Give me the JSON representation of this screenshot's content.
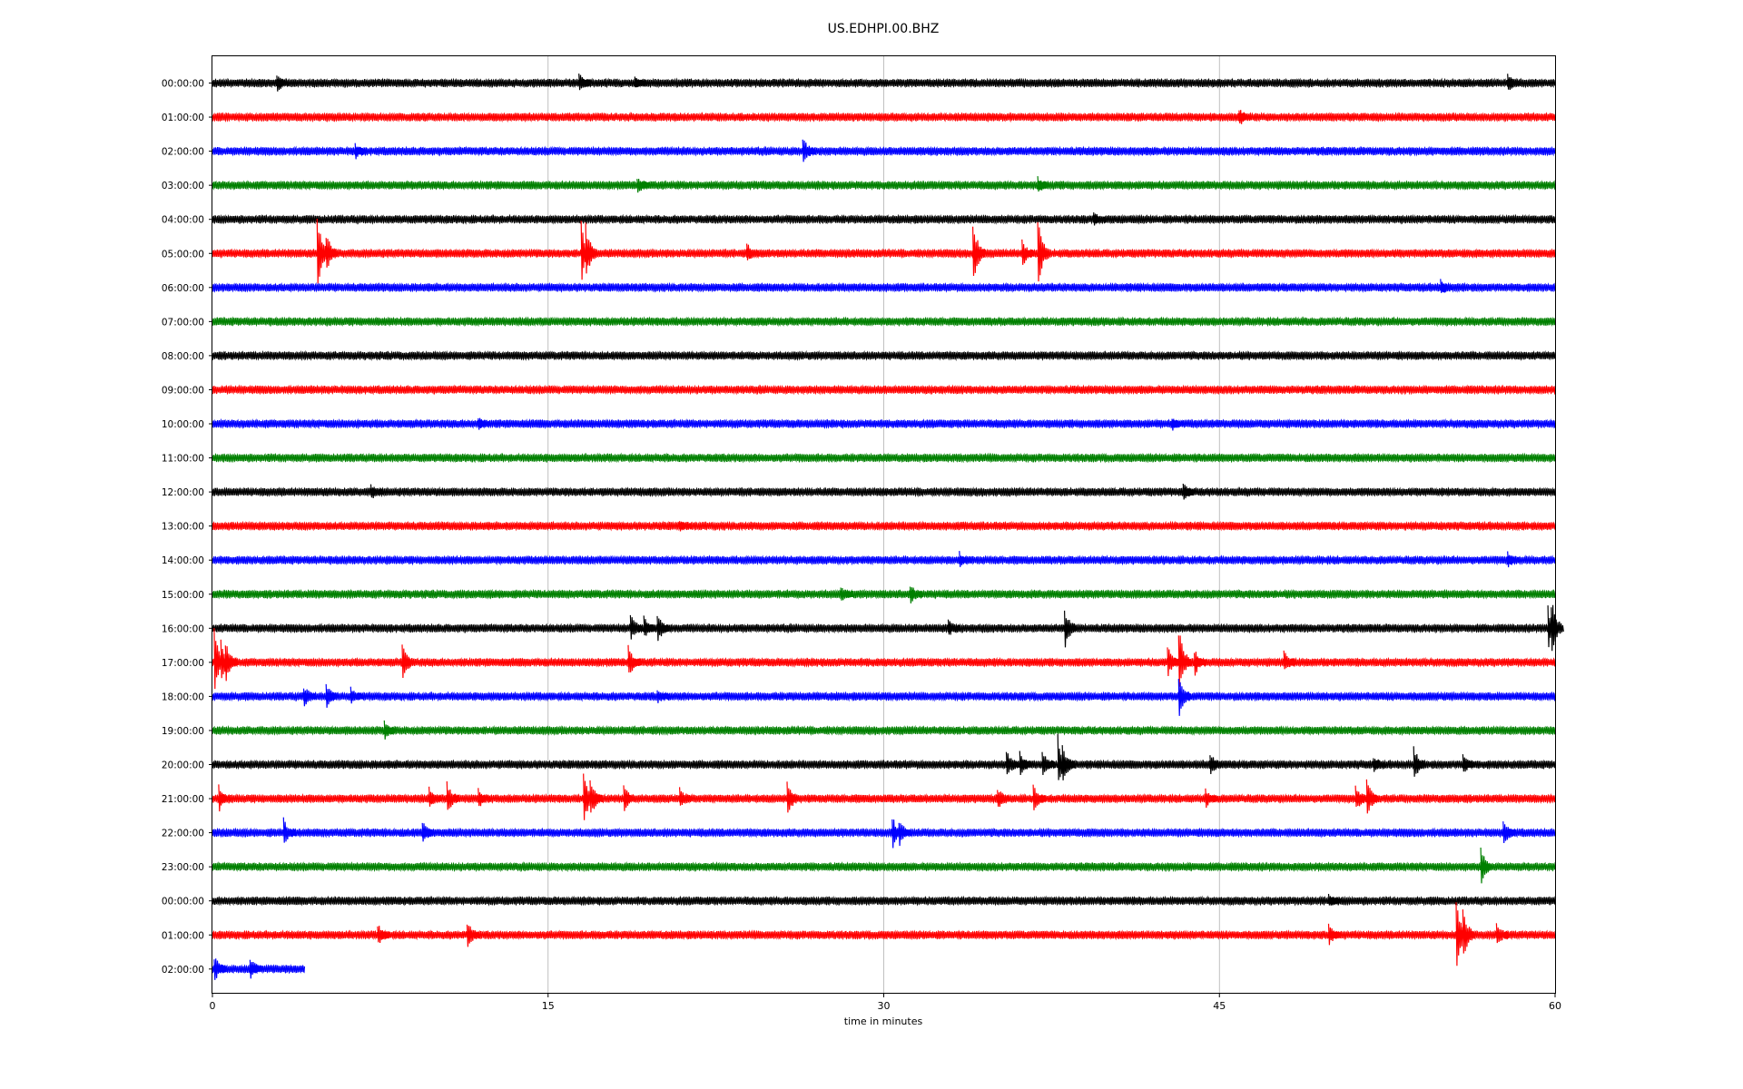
{
  "chart_data": {
    "type": "line",
    "title": "US.EDHPI.00.BHZ",
    "xlabel": "time in minutes",
    "ylabel": "",
    "xlim": [
      0,
      60
    ],
    "x_ticks": [
      0,
      15,
      30,
      45,
      60
    ],
    "grid": "vertical",
    "trace_colors": [
      "#000000",
      "#ff0000",
      "#0000ff",
      "#008000"
    ],
    "rows": [
      {
        "label": "00:00:00",
        "end_minute": 60,
        "events": [
          [
            3,
            0.3
          ],
          [
            16.5,
            0.3
          ],
          [
            19,
            0.2
          ],
          [
            58,
            0.35
          ]
        ]
      },
      {
        "label": "01:00:00",
        "end_minute": 60,
        "events": [
          [
            46,
            0.3
          ]
        ]
      },
      {
        "label": "02:00:00",
        "end_minute": 60,
        "events": [
          [
            6.5,
            0.25
          ],
          [
            26.5,
            0.5
          ]
        ]
      },
      {
        "label": "03:00:00",
        "end_minute": 60,
        "events": [
          [
            19.1,
            0.3
          ],
          [
            37,
            0.25
          ]
        ]
      },
      {
        "label": "04:00:00",
        "end_minute": 60,
        "events": [
          [
            39.5,
            0.2
          ]
        ]
      },
      {
        "label": "05:00:00",
        "end_minute": 60,
        "events": [
          [
            4.8,
            1.5
          ],
          [
            5.2,
            0.8
          ],
          [
            16.6,
            1.2
          ],
          [
            16.8,
            1.1
          ],
          [
            24,
            0.35
          ],
          [
            34.1,
            1.4
          ],
          [
            36.3,
            0.5
          ],
          [
            37,
            1.5
          ]
        ]
      },
      {
        "label": "06:00:00",
        "end_minute": 60,
        "events": [
          [
            55,
            0.25
          ]
        ]
      },
      {
        "label": "07:00:00",
        "end_minute": 60,
        "events": []
      },
      {
        "label": "08:00:00",
        "end_minute": 60,
        "events": []
      },
      {
        "label": "09:00:00",
        "end_minute": 60,
        "events": []
      },
      {
        "label": "10:00:00",
        "end_minute": 60,
        "events": [
          [
            12,
            0.2
          ],
          [
            43,
            0.2
          ]
        ]
      },
      {
        "label": "11:00:00",
        "end_minute": 60,
        "events": []
      },
      {
        "label": "12:00:00",
        "end_minute": 60,
        "events": [
          [
            7.2,
            0.25
          ],
          [
            43.5,
            0.25
          ]
        ]
      },
      {
        "label": "13:00:00",
        "end_minute": 60,
        "events": [
          [
            21,
            0.2
          ]
        ]
      },
      {
        "label": "14:00:00",
        "end_minute": 60,
        "events": [
          [
            33.5,
            0.25
          ],
          [
            58,
            0.25
          ]
        ]
      },
      {
        "label": "15:00:00",
        "end_minute": 60,
        "events": [
          [
            28.2,
            0.3
          ],
          [
            31.3,
            0.35
          ]
        ]
      },
      {
        "label": "16:00:00",
        "end_minute": 60,
        "events": [
          [
            18.8,
            0.5
          ],
          [
            19.4,
            0.4
          ],
          [
            20,
            0.55
          ],
          [
            33,
            0.3
          ],
          [
            38.2,
            0.8
          ],
          [
            59.8,
            0.8
          ],
          [
            59.95,
            1.2
          ]
        ]
      },
      {
        "label": "17:00:00",
        "end_minute": 60,
        "events": [
          [
            0.2,
            1.3
          ],
          [
            0.5,
            0.8
          ],
          [
            0.7,
            0.8
          ],
          [
            8.6,
            0.8
          ],
          [
            18.7,
            0.6
          ],
          [
            42.8,
            0.6
          ],
          [
            43.3,
            1.5
          ],
          [
            44,
            0.5
          ],
          [
            48,
            0.4
          ]
        ]
      },
      {
        "label": "18:00:00",
        "end_minute": 60,
        "events": [
          [
            4.2,
            0.4
          ],
          [
            5.2,
            0.5
          ],
          [
            6.3,
            0.3
          ],
          [
            20,
            0.2
          ],
          [
            43.3,
            0.9
          ]
        ]
      },
      {
        "label": "19:00:00",
        "end_minute": 60,
        "events": [
          [
            7.8,
            0.3
          ]
        ]
      },
      {
        "label": "20:00:00",
        "end_minute": 60,
        "events": [
          [
            35.6,
            0.6
          ],
          [
            36.2,
            0.5
          ],
          [
            37.2,
            0.6
          ],
          [
            37.9,
            1.1
          ],
          [
            38.1,
            0.8
          ],
          [
            44.7,
            0.4
          ],
          [
            52,
            0.3
          ],
          [
            53.8,
            0.7
          ],
          [
            56,
            0.3
          ]
        ]
      },
      {
        "label": "21:00:00",
        "end_minute": 60,
        "events": [
          [
            0.4,
            0.5
          ],
          [
            9.8,
            0.4
          ],
          [
            10.6,
            0.6
          ],
          [
            12,
            0.4
          ],
          [
            16.7,
            1.2
          ],
          [
            17,
            0.8
          ],
          [
            18.5,
            0.5
          ],
          [
            21,
            0.4
          ],
          [
            25.8,
            0.7
          ],
          [
            35.2,
            0.4
          ],
          [
            36.8,
            0.5
          ],
          [
            44.5,
            0.3
          ],
          [
            51.2,
            0.5
          ],
          [
            51.7,
            0.7
          ]
        ]
      },
      {
        "label": "22:00:00",
        "end_minute": 60,
        "events": [
          [
            3.3,
            0.5
          ],
          [
            9.5,
            0.4
          ],
          [
            30.5,
            0.6
          ],
          [
            30.8,
            0.5
          ],
          [
            57.8,
            0.5
          ]
        ]
      },
      {
        "label": "23:00:00",
        "end_minute": 60,
        "events": [
          [
            56.8,
            0.7
          ]
        ]
      },
      {
        "label": "00:00:00",
        "end_minute": 60,
        "events": [
          [
            50,
            0.2
          ]
        ]
      },
      {
        "label": "01:00:00",
        "end_minute": 60,
        "events": [
          [
            7.5,
            0.4
          ],
          [
            11.5,
            0.5
          ],
          [
            50,
            0.35
          ],
          [
            55.7,
            1.5
          ],
          [
            56,
            1.1
          ],
          [
            57.5,
            0.5
          ]
        ]
      },
      {
        "label": "02:00:00",
        "end_minute": 4.1,
        "events": [
          [
            0.2,
            0.5
          ],
          [
            1.8,
            0.4
          ]
        ]
      }
    ]
  }
}
